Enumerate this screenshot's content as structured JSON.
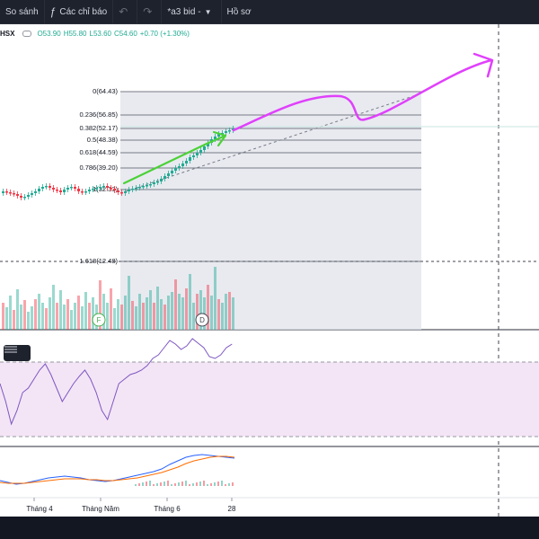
{
  "toolbar": {
    "compare_label": "So sánh",
    "indicators_label": "Các chỉ báo",
    "indicators_icon": "function-icon",
    "layout_name": "*a3 bid -",
    "profile_label": "Hồ sơ",
    "undo_icon": "undo-icon",
    "redo_icon": "redo-icon",
    "dropdown_icon": "chevron-down-icon"
  },
  "legend": {
    "symbol": "HSX",
    "open": "O53.90",
    "high": "H55.80",
    "low": "L53.60",
    "close": "C54.60",
    "change": "+0.70 (+1.30%)"
  },
  "fib_levels": [
    {
      "ratio": "0",
      "price": "64.43",
      "label": "0(64.43)"
    },
    {
      "ratio": "0.236",
      "price": "56.85",
      "label": "0.236(56.85)"
    },
    {
      "ratio": "0.382",
      "price": "52.17",
      "label": "0.382(52.17)"
    },
    {
      "ratio": "0.5",
      "price": "48.38",
      "label": "0.5(48.38)"
    },
    {
      "ratio": "0.618",
      "price": "44.59",
      "label": "0.618(44.59)"
    },
    {
      "ratio": "0.786",
      "price": "39.20",
      "label": "0.786(39.20)"
    },
    {
      "ratio": "1",
      "price": "32.33",
      "label": "1(32.33)"
    },
    {
      "ratio": "1.618",
      "price": "12.48",
      "label": "1.618(12.48)"
    }
  ],
  "event_markers": [
    {
      "letter": "F",
      "color": "#4caf50"
    },
    {
      "letter": "D",
      "color": "#434651"
    }
  ],
  "time_axis": {
    "labels": [
      "Tháng 4",
      "Tháng Năm",
      "Tháng 6",
      "28"
    ]
  },
  "colors": {
    "up": "#22ab94",
    "down": "#f23645",
    "annotation_magenta": "#e040fb",
    "annotation_green": "#4cd137",
    "rsi_line": "#7e57c2",
    "rsi_band": "#f3e5f5",
    "macd_line": "#2962ff",
    "signal_line": "#ff6d00",
    "fib_shade": "#e0e3eb"
  }
}
